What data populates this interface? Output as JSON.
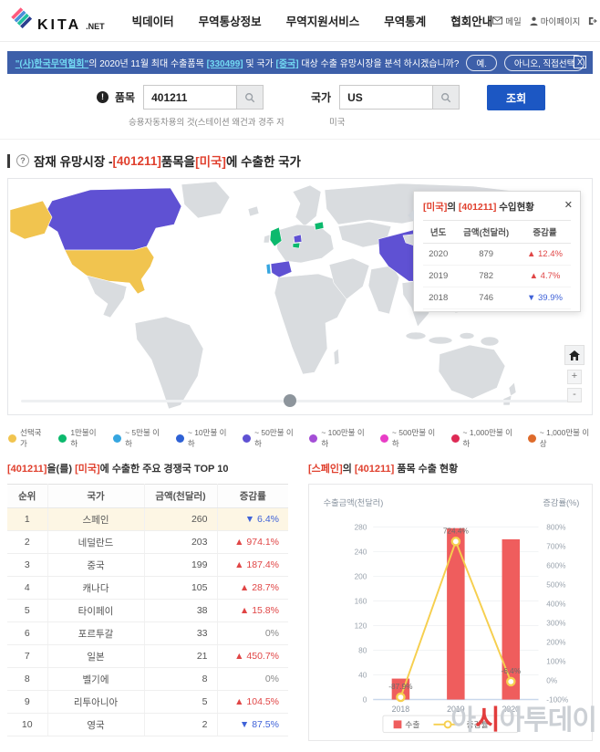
{
  "header": {
    "logo_text": "KITA",
    "logo_suffix": ".NET",
    "nav": [
      "빅데이터",
      "무역통상정보",
      "무역지원서비스",
      "무역통계",
      "협회안내"
    ],
    "utilities": {
      "mail": "메일",
      "mypage": "마이페이지",
      "logout": "로그아웃"
    }
  },
  "banner": {
    "highlight1": "\"(사)한국무역협회\"",
    "mid1": "의 2020년 11월 최대 수출품목 ",
    "highlight2": "[330499]",
    "mid2": " 및 국가 ",
    "highlight3": "[중국]",
    "mid3": " 대상 수출 유망시장을 분석 하시겠습니까?",
    "yes_button": "예.",
    "no_button": "아니오, 직접선택",
    "close": "X"
  },
  "search": {
    "item_label": "품목",
    "item_value": "401211",
    "item_helper": "승용자동차용의 것(스테이션 왜건과 경주 자동…",
    "country_label": "국가",
    "country_value": "US",
    "country_helper": "미국",
    "submit_label": "조회",
    "info_badge": "!"
  },
  "section": {
    "icon": "?",
    "prefix": "잠재 유망시장 - ",
    "red1": "[401211]",
    "mid": " 품목을 ",
    "red2": "[미국]",
    "suffix": "에 수출한 국가"
  },
  "map": {
    "popup": {
      "title_red1": "[미국]",
      "title_mid": "의 ",
      "title_red2": "[401211]",
      "title_suffix": " 수입현황",
      "close": "✕",
      "headers": [
        "년도",
        "금액(천달러)",
        "증감률"
      ],
      "rows": [
        {
          "year": "2020",
          "amount": "879",
          "change": "▲ 12.4%",
          "dir": "up"
        },
        {
          "year": "2019",
          "amount": "782",
          "change": "▲ 4.7%",
          "dir": "up"
        },
        {
          "year": "2018",
          "amount": "746",
          "change": "▼ 39.9%",
          "dir": "down"
        }
      ]
    },
    "country_levels": {
      "alaska": "selected",
      "us": "selected",
      "canada": "l4",
      "spain": "l4",
      "netherlands": "l4",
      "china": "l4",
      "portugal": "l2",
      "taiwan": "l2",
      "japan": "l2",
      "uk": "l1",
      "belgium": "l1",
      "lithuania": "l1"
    },
    "controls": {
      "zoom_in": "+",
      "zoom_out": "-"
    }
  },
  "legend": {
    "items": [
      {
        "label": "선택국가",
        "color": "#f1c44f",
        "level": "selected"
      },
      {
        "label": "1만불이하",
        "color": "#0cb96d",
        "level": "l1"
      },
      {
        "label": "~ 5만불 이하",
        "color": "#36a6e0",
        "level": "l2"
      },
      {
        "label": "~ 10만불 이하",
        "color": "#2e61d5",
        "level": "l3"
      },
      {
        "label": "~ 50만불 이하",
        "color": "#5f51d3",
        "level": "l4"
      },
      {
        "label": "~ 100만불 이하",
        "color": "#a44ed6",
        "level": "l5"
      },
      {
        "label": "~ 500만불 이하",
        "color": "#e83dc6",
        "level": "l6"
      },
      {
        "label": "~ 1,000만불 이하",
        "color": "#de2a55",
        "level": "l7"
      },
      {
        "label": "~ 1,000만불 이상",
        "color": "#de6b2b",
        "level": "l8"
      }
    ]
  },
  "top10": {
    "title_red1": "[401211]",
    "title_mid1": "을(를) ",
    "title_red2": "[미국]",
    "title_suffix": "에 수출한 주요 경쟁국 TOP 10",
    "headers": [
      "순위",
      "국가",
      "금액(천달러)",
      "증감률"
    ],
    "rows": [
      {
        "rank": "1",
        "country": "스페인",
        "amount": "260",
        "change": "▼ 6.4%",
        "dir": "down",
        "selected": true
      },
      {
        "rank": "2",
        "country": "네덜란드",
        "amount": "203",
        "change": "▲ 974.1%",
        "dir": "up"
      },
      {
        "rank": "3",
        "country": "중국",
        "amount": "199",
        "change": "▲ 187.4%",
        "dir": "up"
      },
      {
        "rank": "4",
        "country": "캐나다",
        "amount": "105",
        "change": "▲ 28.7%",
        "dir": "up"
      },
      {
        "rank": "5",
        "country": "타이페이",
        "amount": "38",
        "change": "▲ 15.8%",
        "dir": "up"
      },
      {
        "rank": "6",
        "country": "포르투갈",
        "amount": "33",
        "change": "0%",
        "dir": "flat"
      },
      {
        "rank": "7",
        "country": "일본",
        "amount": "21",
        "change": "▲ 450.7%",
        "dir": "up"
      },
      {
        "rank": "8",
        "country": "벨기에",
        "amount": "8",
        "change": "0%",
        "dir": "flat"
      },
      {
        "rank": "9",
        "country": "리투아니아",
        "amount": "5",
        "change": "▲ 104.5%",
        "dir": "up"
      },
      {
        "rank": "10",
        "country": "영국",
        "amount": "2",
        "change": "▼ 87.5%",
        "dir": "down"
      }
    ]
  },
  "chart_section": {
    "title_red1": "[스페인]",
    "title_mid": "의 ",
    "title_red2": "[401211]",
    "title_suffix": " 품목 수출 현황"
  },
  "chart_data": {
    "type": "bar",
    "categories": [
      "2018",
      "2019",
      "2020"
    ],
    "series": [
      {
        "name": "수출",
        "type": "bar",
        "color": "#ef5d5d",
        "values": [
          34,
          278,
          260
        ]
      },
      {
        "name": "증감률",
        "type": "line",
        "color": "#f6cf4f",
        "values": [
          -87.9,
          724.4,
          -6.4
        ],
        "point_labels": [
          "-87.9%",
          "724.4%",
          "-6.4%"
        ]
      }
    ],
    "left_axis": {
      "title": "수출금액(천달러)",
      "min": 0,
      "max": 280,
      "step": 40
    },
    "right_axis": {
      "title": "증감률(%)",
      "min": -100,
      "max": 800,
      "step": 100,
      "suffix": "%"
    },
    "legend_position": "bottom",
    "grid": true
  },
  "watermark": {
    "pre": "아",
    "accent": "시",
    "post": "아투데이"
  }
}
